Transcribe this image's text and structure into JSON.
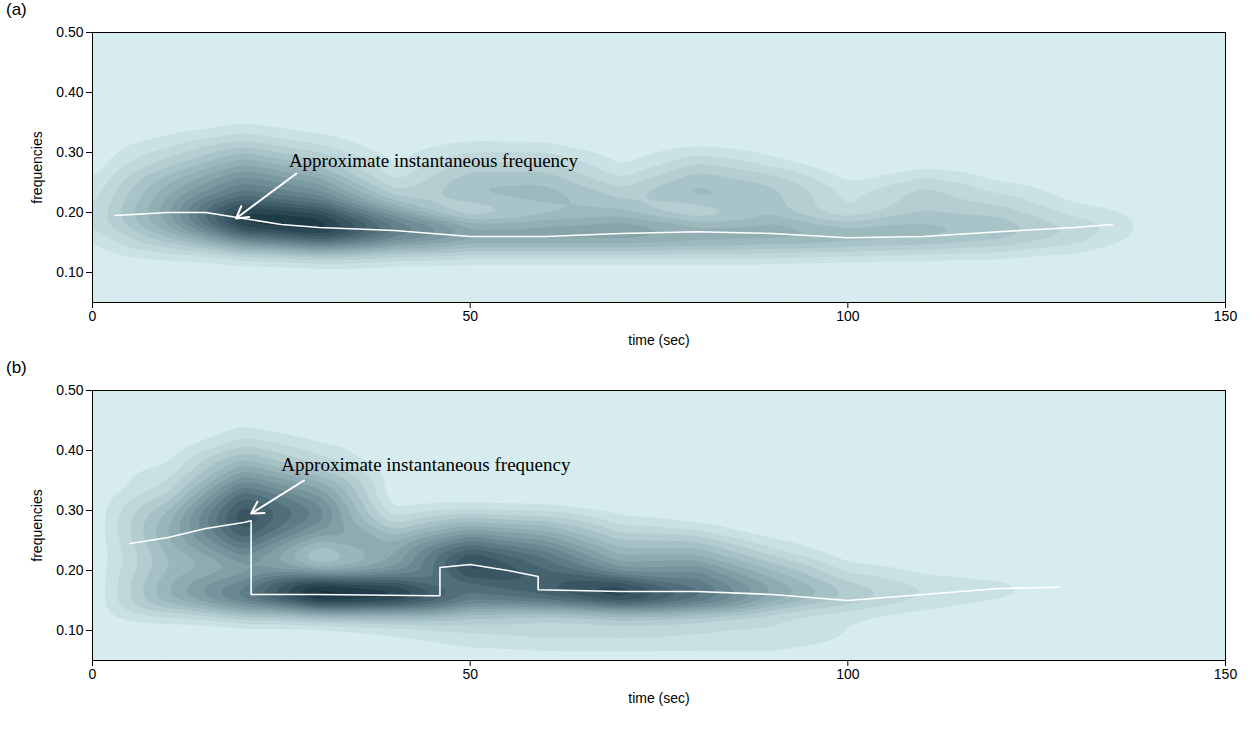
{
  "chart_data": [
    {
      "type": "contour",
      "panel": "(a)",
      "x_label": "time (sec)",
      "y_label": "frequencies",
      "xlim": [
        0,
        150
      ],
      "xticks": [
        0,
        50,
        100,
        150
      ],
      "ylim": [
        0.05,
        0.5
      ],
      "yticks": [
        0.1,
        0.2,
        0.3,
        0.4,
        0.5
      ],
      "grid": false,
      "time": [
        0,
        10,
        20,
        30,
        40,
        50,
        60,
        70,
        80,
        90,
        100,
        110,
        120,
        130,
        140,
        150
      ],
      "frequency": [
        0.05,
        0.075,
        0.1,
        0.125,
        0.15,
        0.175,
        0.2,
        0.225,
        0.25,
        0.275,
        0.3,
        0.325,
        0.35,
        0.375,
        0.4,
        0.425,
        0.45,
        0.475,
        0.5
      ],
      "cells": [
        [
          0,
          0,
          0,
          0,
          0,
          0,
          0,
          0,
          0,
          0,
          0,
          0,
          0,
          0,
          0,
          0
        ],
        [
          0,
          0,
          0,
          0,
          0,
          0,
          0,
          0,
          0,
          0,
          0,
          0,
          0,
          0,
          0,
          0
        ],
        [
          0,
          0,
          0,
          0,
          0,
          0,
          0,
          0,
          0,
          0,
          0,
          0,
          0,
          0,
          0,
          0
        ],
        [
          0,
          0.05,
          0.1,
          0.15,
          0.1,
          0.08,
          0.08,
          0.08,
          0.08,
          0.08,
          0.06,
          0.05,
          0.04,
          0.02,
          0,
          0
        ],
        [
          0.05,
          0.2,
          0.45,
          0.6,
          0.45,
          0.35,
          0.35,
          0.35,
          0.32,
          0.3,
          0.28,
          0.25,
          0.2,
          0.12,
          0.02,
          0
        ],
        [
          0.1,
          0.35,
          0.8,
          0.9,
          0.6,
          0.4,
          0.4,
          0.42,
          0.35,
          0.35,
          0.28,
          0.28,
          0.25,
          0.15,
          0.03,
          0
        ],
        [
          0.1,
          0.4,
          0.85,
          0.75,
          0.4,
          0.1,
          0.2,
          0.25,
          0.1,
          0.22,
          0.08,
          0.2,
          0.18,
          0.08,
          0.02,
          0
        ],
        [
          0.08,
          0.35,
          0.6,
          0.5,
          0.2,
          0.25,
          0.28,
          0.2,
          0.28,
          0.22,
          0.1,
          0.18,
          0.12,
          0.03,
          0,
          0
        ],
        [
          0.05,
          0.3,
          0.5,
          0.4,
          0.1,
          0.25,
          0.25,
          0.12,
          0.25,
          0.2,
          0.05,
          0.14,
          0.05,
          0,
          0,
          0
        ],
        [
          0.02,
          0.2,
          0.38,
          0.25,
          0.05,
          0.18,
          0.18,
          0.05,
          0.18,
          0.1,
          0,
          0.03,
          0,
          0,
          0,
          0
        ],
        [
          0,
          0.12,
          0.25,
          0.15,
          0.02,
          0.1,
          0.1,
          0.02,
          0.08,
          0.03,
          0,
          0,
          0,
          0,
          0,
          0
        ],
        [
          0,
          0.05,
          0.12,
          0.06,
          0,
          0.03,
          0.02,
          0,
          0,
          0,
          0,
          0,
          0,
          0,
          0,
          0
        ],
        [
          0,
          0.02,
          0.04,
          0.01,
          0,
          0,
          0,
          0,
          0,
          0,
          0,
          0,
          0,
          0,
          0,
          0
        ],
        [
          0,
          0,
          0,
          0,
          0,
          0,
          0,
          0,
          0,
          0,
          0,
          0,
          0,
          0,
          0,
          0
        ],
        [
          0,
          0,
          0,
          0,
          0,
          0,
          0,
          0,
          0,
          0,
          0,
          0,
          0,
          0,
          0,
          0
        ],
        [
          0,
          0,
          0,
          0,
          0,
          0,
          0,
          0,
          0,
          0,
          0,
          0,
          0,
          0,
          0,
          0
        ],
        [
          0,
          0,
          0,
          0,
          0,
          0,
          0,
          0,
          0,
          0,
          0,
          0,
          0,
          0,
          0,
          0
        ],
        [
          0,
          0,
          0,
          0,
          0,
          0,
          0,
          0,
          0,
          0,
          0,
          0,
          0,
          0,
          0,
          0
        ],
        [
          0,
          0,
          0,
          0,
          0,
          0,
          0,
          0,
          0,
          0,
          0,
          0,
          0,
          0,
          0,
          0
        ]
      ],
      "ridge": {
        "color": "#ffffff",
        "x": [
          3,
          10,
          15,
          20,
          25,
          30,
          40,
          50,
          60,
          70,
          80,
          90,
          100,
          110,
          120,
          130,
          135
        ],
        "y": [
          0.195,
          0.2,
          0.2,
          0.19,
          0.18,
          0.175,
          0.17,
          0.16,
          0.16,
          0.165,
          0.168,
          0.165,
          0.158,
          0.16,
          0.168,
          0.175,
          0.18
        ]
      },
      "annotation": {
        "text": "Approximate instantaneous frequency",
        "x": 26,
        "y": 0.28,
        "arrow_from": [
          27,
          0.265
        ],
        "arrow_to": [
          19,
          0.19
        ],
        "color": "#ffffff"
      }
    },
    {
      "type": "contour",
      "panel": "(b)",
      "x_label": "time (sec)",
      "y_label": "frequencies",
      "xlim": [
        0,
        150
      ],
      "xticks": [
        0,
        50,
        100,
        150
      ],
      "ylim": [
        0.05,
        0.5
      ],
      "yticks": [
        0.1,
        0.2,
        0.3,
        0.4,
        0.5
      ],
      "grid": false,
      "time": [
        0,
        10,
        20,
        30,
        40,
        50,
        60,
        70,
        80,
        90,
        100,
        110,
        120,
        130,
        140,
        150
      ],
      "frequency": [
        0.05,
        0.075,
        0.1,
        0.125,
        0.15,
        0.175,
        0.2,
        0.225,
        0.25,
        0.275,
        0.3,
        0.325,
        0.35,
        0.375,
        0.4,
        0.425,
        0.45,
        0.475,
        0.5
      ],
      "cells": [
        [
          0,
          0,
          0,
          0,
          0,
          0,
          0,
          0,
          0,
          0,
          0,
          0,
          0,
          0,
          0,
          0
        ],
        [
          0,
          0,
          0,
          0,
          0.03,
          0.06,
          0.08,
          0.08,
          0.08,
          0.08,
          0.04,
          0,
          0,
          0,
          0,
          0
        ],
        [
          0,
          0,
          0,
          0,
          0.05,
          0.1,
          0.12,
          0.12,
          0.1,
          0.1,
          0.05,
          0,
          0,
          0,
          0,
          0
        ],
        [
          0,
          0.1,
          0.2,
          0.25,
          0.25,
          0.2,
          0.15,
          0.2,
          0.18,
          0.1,
          0.05,
          0.02,
          0,
          0,
          0,
          0
        ],
        [
          0,
          0.3,
          0.55,
          0.85,
          0.8,
          0.55,
          0.6,
          0.75,
          0.6,
          0.35,
          0.2,
          0.1,
          0.05,
          0,
          0,
          0
        ],
        [
          0,
          0.3,
          0.5,
          0.85,
          0.75,
          0.55,
          0.65,
          0.75,
          0.55,
          0.35,
          0.18,
          0.1,
          0.08,
          0.02,
          0,
          0
        ],
        [
          0,
          0.25,
          0.35,
          0.3,
          0.4,
          0.75,
          0.6,
          0.4,
          0.45,
          0.25,
          0.08,
          0.03,
          0,
          0,
          0,
          0
        ],
        [
          0,
          0.25,
          0.45,
          0.15,
          0.35,
          0.7,
          0.55,
          0.3,
          0.3,
          0.15,
          0.02,
          0,
          0,
          0,
          0,
          0
        ],
        [
          0,
          0.3,
          0.6,
          0.3,
          0.3,
          0.5,
          0.4,
          0.2,
          0.2,
          0.05,
          0,
          0,
          0,
          0,
          0,
          0
        ],
        [
          0,
          0.3,
          0.7,
          0.45,
          0.15,
          0.3,
          0.25,
          0.1,
          0.05,
          0,
          0,
          0,
          0,
          0,
          0,
          0
        ],
        [
          0,
          0.25,
          0.7,
          0.5,
          0.05,
          0.1,
          0.08,
          0.02,
          0,
          0,
          0,
          0,
          0,
          0,
          0,
          0
        ],
        [
          0,
          0.15,
          0.6,
          0.4,
          0,
          0,
          0,
          0,
          0,
          0,
          0,
          0,
          0,
          0,
          0,
          0
        ],
        [
          0,
          0.1,
          0.45,
          0.3,
          0,
          0,
          0,
          0,
          0,
          0,
          0,
          0,
          0,
          0,
          0,
          0
        ],
        [
          0,
          0.05,
          0.3,
          0.15,
          0,
          0,
          0,
          0,
          0,
          0,
          0,
          0,
          0,
          0,
          0,
          0
        ],
        [
          0,
          0.02,
          0.18,
          0.08,
          0,
          0,
          0,
          0,
          0,
          0,
          0,
          0,
          0,
          0,
          0,
          0
        ],
        [
          0,
          0,
          0.08,
          0.02,
          0,
          0,
          0,
          0,
          0,
          0,
          0,
          0,
          0,
          0,
          0,
          0
        ],
        [
          0,
          0,
          0.03,
          0,
          0,
          0,
          0,
          0,
          0,
          0,
          0,
          0,
          0,
          0,
          0,
          0
        ],
        [
          0,
          0,
          0,
          0,
          0,
          0,
          0,
          0,
          0,
          0,
          0,
          0,
          0,
          0,
          0,
          0
        ],
        [
          0,
          0,
          0,
          0,
          0,
          0,
          0,
          0,
          0,
          0,
          0,
          0,
          0,
          0,
          0,
          0
        ]
      ],
      "ridge": {
        "color": "#ffffff",
        "x": [
          5,
          10,
          15,
          20,
          21,
          21,
          30,
          45,
          46,
          46,
          50,
          55,
          59,
          59,
          70,
          80,
          90,
          95,
          100,
          110,
          120,
          128
        ],
        "y": [
          0.245,
          0.255,
          0.27,
          0.28,
          0.283,
          0.16,
          0.16,
          0.158,
          0.158,
          0.205,
          0.21,
          0.2,
          0.19,
          0.168,
          0.165,
          0.165,
          0.16,
          0.155,
          0.15,
          0.16,
          0.17,
          0.172
        ]
      },
      "annotation": {
        "text": "Approximate instantaneous frequency",
        "x": 25,
        "y": 0.37,
        "arrow_from": [
          28,
          0.35
        ],
        "arrow_to": [
          21,
          0.295
        ],
        "color": "#ffffff"
      }
    }
  ]
}
